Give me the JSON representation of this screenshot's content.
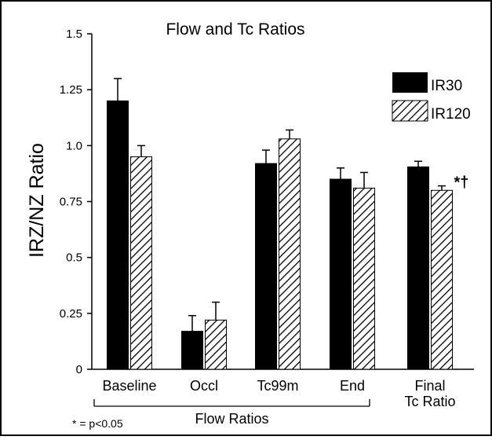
{
  "chart_data": {
    "type": "bar",
    "title": "Flow and Tc Ratios",
    "ylabel": "IRZ/NZ Ratio",
    "xlabel": "",
    "ylim": [
      0,
      1.5
    ],
    "y_ticks": [
      0,
      0.25,
      0.5,
      0.75,
      1.0,
      1.25,
      1.5
    ],
    "y_tick_labels": [
      "0",
      "0.25",
      "0.5",
      "0.75",
      "1.0",
      "1.25",
      "1.5"
    ],
    "grid": false,
    "legend_position": "top-right",
    "categories": [
      {
        "lines": [
          "Baseline"
        ]
      },
      {
        "lines": [
          "Occl"
        ]
      },
      {
        "lines": [
          "Tc99m"
        ]
      },
      {
        "lines": [
          "End"
        ]
      },
      {
        "lines": [
          "Final",
          "Tc Ratio"
        ]
      }
    ],
    "series": [
      {
        "name": "IR30",
        "pattern": "solid",
        "color": "#000000",
        "values": [
          1.2,
          0.17,
          0.92,
          0.85,
          0.905
        ],
        "errors": [
          0.1,
          0.07,
          0.06,
          0.05,
          0.025
        ]
      },
      {
        "name": "IR120",
        "pattern": "hatched",
        "color": "#000000",
        "values": [
          0.95,
          0.22,
          1.03,
          0.81,
          0.8
        ],
        "errors": [
          0.05,
          0.08,
          0.04,
          0.07,
          0.02
        ]
      }
    ],
    "group_bracket_label": "Flow Ratios",
    "group_bracket_span": [
      0,
      3
    ],
    "annotations": [
      {
        "category_index": 4,
        "series_index": 1,
        "text": "*†"
      }
    ],
    "footnote": "* = p<0.05"
  }
}
